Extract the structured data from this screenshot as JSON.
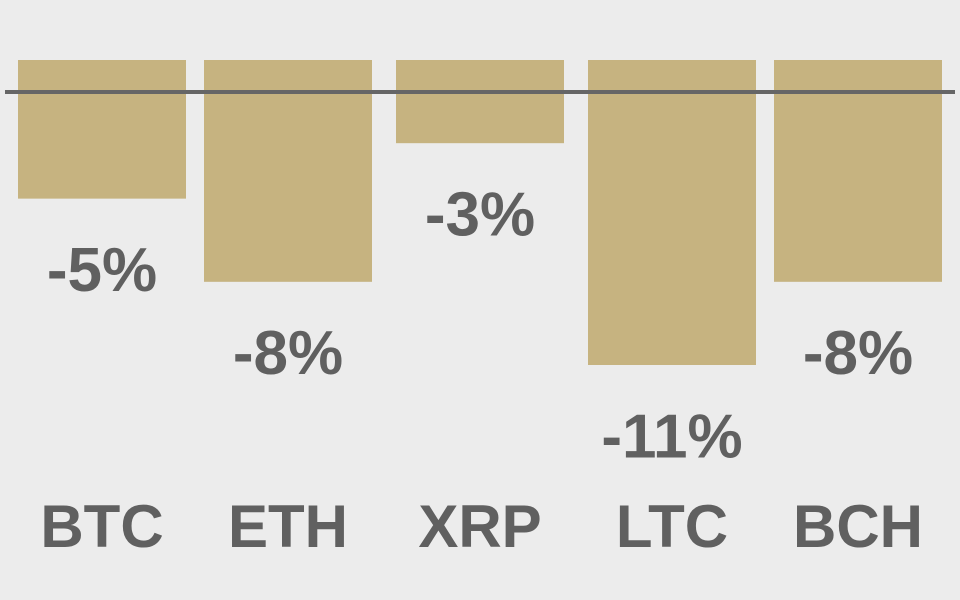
{
  "chart_data": {
    "type": "bar",
    "categories": [
      "BTC",
      "ETH",
      "XRP",
      "LTC",
      "BCH"
    ],
    "values": [
      -5,
      -8,
      -3,
      -11,
      -8
    ],
    "value_labels": [
      "-5%",
      "-8%",
      "-3%",
      "-11%",
      "-8%"
    ],
    "color": "#c6b380"
  }
}
